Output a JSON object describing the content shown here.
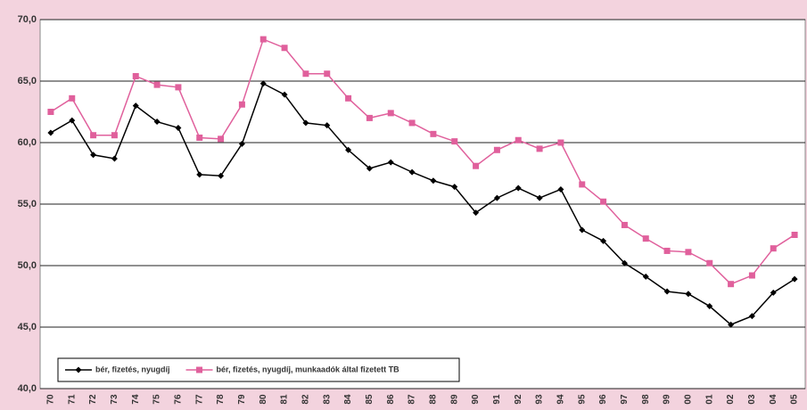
{
  "chart_data": {
    "type": "line",
    "categories": [
      "70",
      "71",
      "72",
      "73",
      "74",
      "75",
      "76",
      "77",
      "78",
      "79",
      "80",
      "81",
      "82",
      "83",
      "84",
      "85",
      "86",
      "87",
      "88",
      "89",
      "90",
      "91",
      "92",
      "93",
      "94",
      "95",
      "96",
      "97",
      "98",
      "99",
      "00",
      "01",
      "02",
      "03",
      "04",
      "05"
    ],
    "series": [
      {
        "name": "bér, fizetés, nyugdíj",
        "color": "#000000",
        "marker": "diamond",
        "values": [
          60.8,
          61.8,
          59.0,
          58.7,
          63.0,
          61.7,
          61.2,
          57.4,
          57.3,
          59.9,
          64.8,
          63.9,
          61.6,
          61.4,
          59.4,
          57.9,
          58.4,
          57.6,
          56.9,
          56.4,
          54.3,
          55.5,
          56.3,
          55.5,
          56.2,
          52.9,
          52.0,
          50.2,
          49.1,
          47.9,
          47.7,
          46.7,
          45.2,
          45.9,
          47.8,
          48.9
        ]
      },
      {
        "name": "bér, fizetés, nyugdíj, munkaadók által fizetett TB",
        "color": "#e0609c",
        "marker": "square",
        "values": [
          62.5,
          63.6,
          60.6,
          60.6,
          65.4,
          64.7,
          64.5,
          60.4,
          60.3,
          63.1,
          68.4,
          67.7,
          65.6,
          65.6,
          63.6,
          62.0,
          62.4,
          61.6,
          60.7,
          60.1,
          58.1,
          59.4,
          60.2,
          59.5,
          60.0,
          56.6,
          55.2,
          53.3,
          52.2,
          51.2,
          51.1,
          50.2,
          48.5,
          49.2,
          51.4,
          52.5
        ]
      }
    ],
    "ylim": [
      40,
      70
    ],
    "yticks": [
      {
        "value": 40,
        "label": "40,0"
      },
      {
        "value": 45,
        "label": "45,0"
      },
      {
        "value": 50,
        "label": "50,0"
      },
      {
        "value": 55,
        "label": "55,0"
      },
      {
        "value": 60,
        "label": "60,0"
      },
      {
        "value": 65,
        "label": "65,0"
      },
      {
        "value": 70,
        "label": "70,0"
      }
    ],
    "grid": true,
    "legend": "bottom-left"
  }
}
